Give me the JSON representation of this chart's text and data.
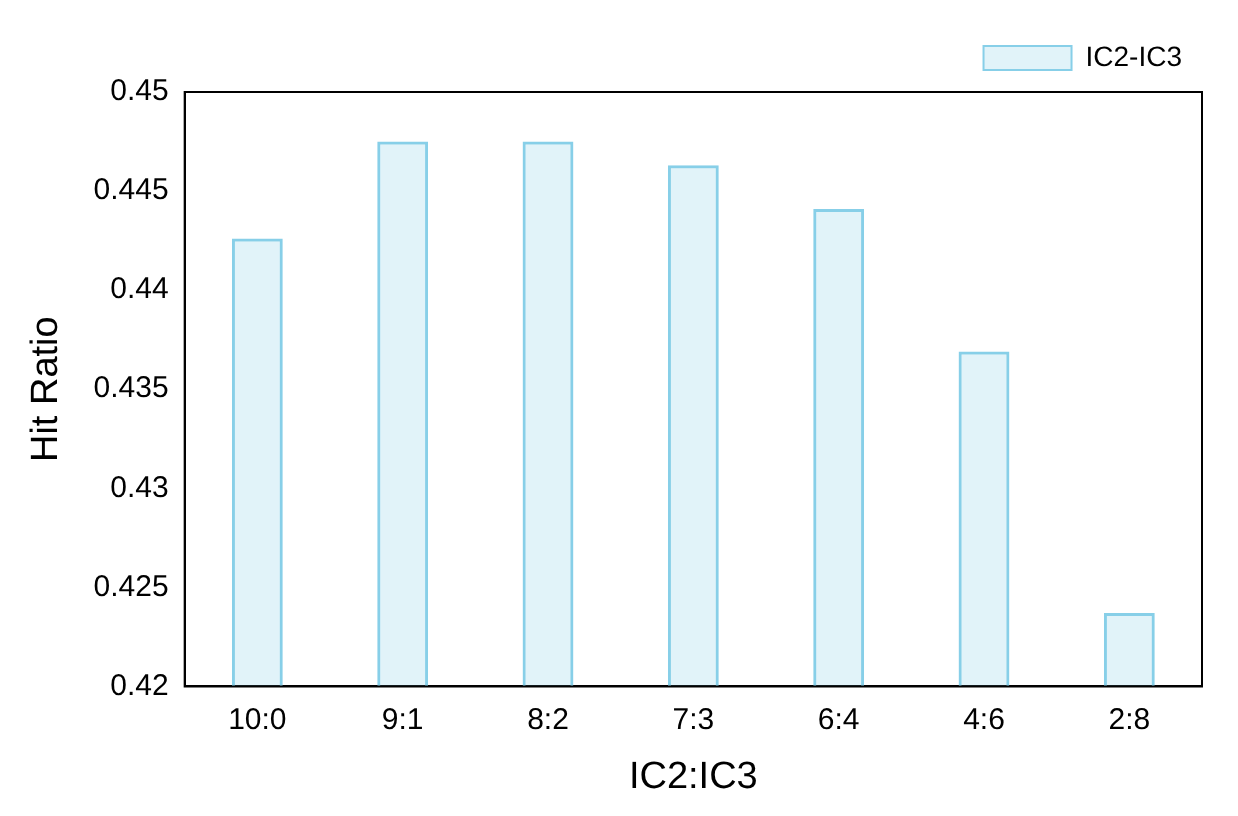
{
  "chart_data": {
    "type": "bar",
    "xlabel": "IC2:IC3",
    "ylabel": "Hit Ratio",
    "categories": [
      "10:0",
      "9:1",
      "8:2",
      "7:3",
      "6:4",
      "4:6",
      "2:8"
    ],
    "series": [
      {
        "name": "IC2-IC3",
        "color": "#87cfe8",
        "values": [
          0.4426,
          0.4475,
          0.4475,
          0.4463,
          0.4441,
          0.4369,
          0.4237
        ]
      }
    ],
    "ylim": [
      0.42,
      0.45
    ],
    "yticks": [
      0.42,
      0.425,
      0.43,
      0.435,
      0.44,
      0.445,
      0.45
    ],
    "grid": false,
    "legend": "top right"
  }
}
